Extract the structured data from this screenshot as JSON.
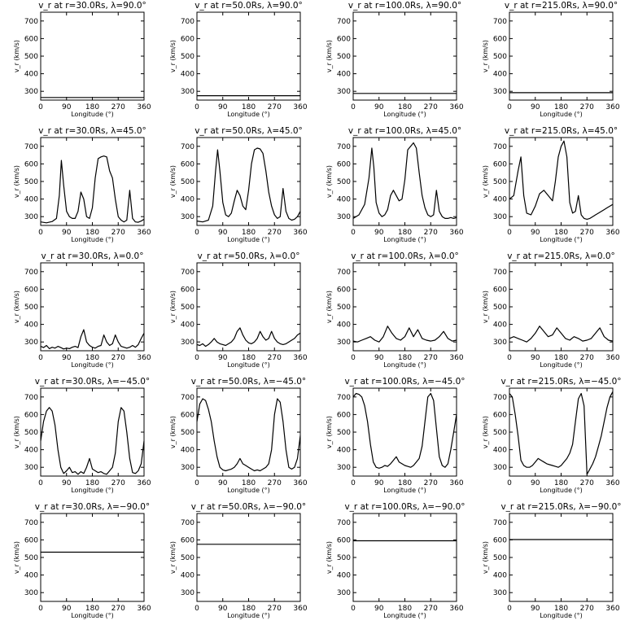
{
  "chart_data": {
    "type": "line",
    "rows": 5,
    "cols": 4,
    "xlabel": "Longitude (°)",
    "ylabel": "v_r (km/s)",
    "xlim": [
      0,
      360
    ],
    "ylim": [
      250,
      750
    ],
    "xticks": [
      0,
      90,
      180,
      270,
      360
    ],
    "yticks": [
      300,
      400,
      500,
      600,
      700
    ],
    "panels": [
      {
        "title": "v_r at r=30.0Rs, λ=90.0°",
        "x": [
          0,
          360
        ],
        "y": [
          265,
          265
        ]
      },
      {
        "title": "v_r at r=50.0Rs, λ=90.0°",
        "x": [
          0,
          360
        ],
        "y": [
          275,
          275
        ]
      },
      {
        "title": "v_r at r=100.0Rs, λ=90.0°",
        "x": [
          0,
          360
        ],
        "y": [
          288,
          288
        ]
      },
      {
        "title": "v_r at r=215.0Rs, λ=90.0°",
        "x": [
          0,
          360
        ],
        "y": [
          292,
          292
        ]
      },
      {
        "title": "v_r at r=30.0Rs, λ=45.0°",
        "x": [
          0,
          20,
          40,
          55,
          65,
          72,
          80,
          90,
          100,
          110,
          120,
          130,
          140,
          150,
          160,
          170,
          180,
          190,
          200,
          210,
          220,
          230,
          240,
          250,
          260,
          270,
          280,
          290,
          300,
          310,
          320,
          330,
          340,
          350,
          360
        ],
        "y": [
          270,
          265,
          272,
          290,
          420,
          620,
          480,
          330,
          300,
          290,
          290,
          330,
          440,
          400,
          300,
          290,
          350,
          520,
          630,
          640,
          645,
          640,
          560,
          520,
          400,
          300,
          280,
          270,
          280,
          450,
          290,
          270,
          268,
          275,
          285
        ]
      },
      {
        "title": "v_r at r=50.0Rs, λ=45.0°",
        "x": [
          0,
          20,
          40,
          55,
          65,
          72,
          80,
          90,
          100,
          110,
          120,
          130,
          140,
          150,
          160,
          170,
          180,
          190,
          200,
          210,
          220,
          230,
          240,
          250,
          260,
          270,
          280,
          290,
          300,
          310,
          320,
          330,
          340,
          350,
          360
        ],
        "y": [
          275,
          270,
          280,
          360,
          560,
          680,
          560,
          380,
          310,
          300,
          320,
          390,
          450,
          420,
          360,
          340,
          450,
          600,
          680,
          690,
          685,
          660,
          560,
          440,
          360,
          310,
          290,
          300,
          460,
          330,
          290,
          280,
          285,
          300,
          330
        ]
      },
      {
        "title": "v_r at r=100.0Rs, λ=45.0°",
        "x": [
          0,
          20,
          40,
          55,
          65,
          72,
          80,
          90,
          100,
          110,
          120,
          130,
          140,
          150,
          160,
          170,
          180,
          190,
          200,
          210,
          220,
          230,
          240,
          250,
          260,
          270,
          280,
          290,
          300,
          310,
          320,
          330,
          340,
          350,
          360
        ],
        "y": [
          290,
          310,
          370,
          520,
          690,
          580,
          380,
          320,
          300,
          310,
          340,
          420,
          450,
          420,
          390,
          400,
          510,
          680,
          700,
          720,
          690,
          550,
          420,
          350,
          310,
          300,
          310,
          450,
          330,
          300,
          290,
          290,
          295,
          290,
          295
        ]
      },
      {
        "title": "v_r at r=215.0Rs, λ=45.0°",
        "x": [
          0,
          15,
          30,
          40,
          50,
          60,
          75,
          90,
          105,
          120,
          135,
          150,
          160,
          170,
          180,
          190,
          200,
          210,
          220,
          230,
          240,
          250,
          260,
          270,
          280,
          290,
          300,
          310,
          320,
          330,
          340,
          350,
          360
        ],
        "y": [
          400,
          420,
          560,
          640,
          420,
          320,
          310,
          360,
          430,
          450,
          420,
          390,
          500,
          640,
          700,
          730,
          640,
          380,
          320,
          330,
          420,
          310,
          290,
          285,
          290,
          300,
          310,
          320,
          330,
          340,
          350,
          360,
          370
        ]
      },
      {
        "title": "v_r at r=30.0Rs, λ=0.0°",
        "x": [
          0,
          10,
          20,
          30,
          40,
          50,
          60,
          70,
          80,
          90,
          100,
          110,
          120,
          130,
          140,
          150,
          160,
          170,
          180,
          190,
          200,
          210,
          220,
          230,
          240,
          250,
          260,
          270,
          280,
          290,
          300,
          310,
          320,
          330,
          340,
          350,
          360
        ],
        "y": [
          275,
          268,
          280,
          262,
          270,
          265,
          275,
          268,
          260,
          265,
          262,
          270,
          275,
          268,
          330,
          370,
          300,
          280,
          270,
          265,
          275,
          280,
          340,
          300,
          280,
          290,
          340,
          300,
          275,
          270,
          265,
          270,
          280,
          270,
          285,
          320,
          350
        ]
      },
      {
        "title": "v_r at r=50.0Rs, λ=0.0°",
        "x": [
          0,
          10,
          20,
          30,
          40,
          50,
          60,
          70,
          80,
          90,
          100,
          110,
          120,
          130,
          140,
          150,
          160,
          170,
          180,
          190,
          200,
          210,
          220,
          230,
          240,
          250,
          260,
          270,
          280,
          290,
          300,
          310,
          320,
          330,
          340,
          350,
          360
        ],
        "y": [
          285,
          280,
          290,
          275,
          285,
          300,
          320,
          300,
          290,
          285,
          280,
          290,
          300,
          320,
          360,
          380,
          340,
          310,
          295,
          290,
          300,
          320,
          360,
          330,
          310,
          320,
          360,
          320,
          300,
          290,
          285,
          290,
          300,
          310,
          320,
          340,
          350
        ]
      },
      {
        "title": "v_r at r=100.0Rs, λ=0.0°",
        "x": [
          0,
          15,
          30,
          45,
          60,
          75,
          90,
          105,
          120,
          135,
          150,
          165,
          180,
          195,
          210,
          225,
          240,
          255,
          270,
          285,
          300,
          315,
          330,
          345,
          360
        ],
        "y": [
          305,
          300,
          310,
          320,
          330,
          310,
          300,
          330,
          390,
          350,
          320,
          310,
          330,
          380,
          330,
          370,
          320,
          310,
          305,
          310,
          330,
          360,
          320,
          305,
          310
        ]
      },
      {
        "title": "v_r at r=215.0Rs, λ=0.0°",
        "x": [
          0,
          15,
          30,
          45,
          60,
          75,
          90,
          105,
          120,
          135,
          150,
          165,
          180,
          195,
          210,
          225,
          240,
          255,
          270,
          285,
          300,
          315,
          330,
          345,
          360
        ],
        "y": [
          320,
          330,
          320,
          310,
          300,
          320,
          350,
          390,
          360,
          330,
          340,
          380,
          350,
          320,
          310,
          330,
          320,
          305,
          310,
          320,
          350,
          380,
          330,
          310,
          305
        ]
      },
      {
        "title": "v_r at r=30.0Rs, λ=−45.0°",
        "x": [
          0,
          10,
          20,
          30,
          40,
          50,
          60,
          70,
          80,
          90,
          100,
          110,
          120,
          130,
          140,
          150,
          160,
          170,
          180,
          190,
          200,
          210,
          220,
          230,
          240,
          250,
          260,
          270,
          280,
          290,
          300,
          310,
          320,
          330,
          340,
          350,
          360
        ],
        "y": [
          450,
          560,
          620,
          640,
          620,
          540,
          400,
          300,
          265,
          280,
          300,
          270,
          275,
          260,
          275,
          265,
          300,
          350,
          290,
          280,
          270,
          275,
          265,
          260,
          280,
          300,
          380,
          560,
          640,
          620,
          500,
          350,
          270,
          265,
          280,
          320,
          450
        ]
      },
      {
        "title": "v_r at r=50.0Rs, λ=−45.0°",
        "x": [
          0,
          10,
          20,
          30,
          40,
          50,
          60,
          70,
          80,
          90,
          100,
          110,
          120,
          130,
          140,
          150,
          160,
          170,
          180,
          190,
          200,
          210,
          220,
          230,
          240,
          250,
          260,
          270,
          280,
          290,
          300,
          310,
          320,
          330,
          340,
          350,
          360
        ],
        "y": [
          560,
          660,
          690,
          680,
          630,
          560,
          450,
          360,
          300,
          285,
          280,
          285,
          290,
          300,
          320,
          350,
          320,
          310,
          300,
          290,
          280,
          285,
          280,
          290,
          300,
          320,
          400,
          600,
          690,
          670,
          560,
          400,
          300,
          290,
          300,
          350,
          480
        ]
      },
      {
        "title": "v_r at r=100.0Rs, λ=−45.0°",
        "x": [
          0,
          10,
          20,
          30,
          40,
          50,
          60,
          70,
          80,
          90,
          100,
          110,
          120,
          130,
          140,
          150,
          160,
          170,
          180,
          190,
          200,
          210,
          220,
          230,
          240,
          250,
          260,
          270,
          280,
          290,
          300,
          310,
          320,
          330,
          340,
          350,
          360
        ],
        "y": [
          700,
          720,
          715,
          700,
          650,
          560,
          430,
          330,
          300,
          295,
          300,
          310,
          305,
          320,
          340,
          360,
          330,
          320,
          310,
          305,
          300,
          310,
          330,
          350,
          420,
          560,
          700,
          720,
          680,
          520,
          360,
          310,
          300,
          320,
          400,
          500,
          600
        ]
      },
      {
        "title": "v_r at r=215.0Rs, λ=−45.0°",
        "x": [
          0,
          10,
          20,
          30,
          40,
          50,
          60,
          70,
          80,
          90,
          100,
          110,
          120,
          130,
          140,
          150,
          160,
          170,
          180,
          190,
          200,
          210,
          220,
          230,
          240,
          250,
          260,
          270,
          280,
          290,
          300,
          310,
          320,
          330,
          340,
          350,
          360
        ],
        "y": [
          720,
          700,
          600,
          480,
          340,
          310,
          300,
          300,
          310,
          330,
          350,
          340,
          330,
          320,
          315,
          310,
          305,
          300,
          310,
          330,
          350,
          380,
          430,
          560,
          690,
          720,
          650,
          260,
          290,
          320,
          360,
          420,
          480,
          560,
          640,
          700,
          730
        ]
      },
      {
        "title": "v_r at r=30.0Rs, λ=−90.0°",
        "x": [
          0,
          360
        ],
        "y": [
          530,
          530
        ]
      },
      {
        "title": "v_r at r=50.0Rs, λ=−90.0°",
        "x": [
          0,
          360
        ],
        "y": [
          575,
          575
        ]
      },
      {
        "title": "v_r at r=100.0Rs, λ=−90.0°",
        "x": [
          0,
          360
        ],
        "y": [
          595,
          595
        ]
      },
      {
        "title": "v_r at r=215.0Rs, λ=−90.0°",
        "x": [
          0,
          360
        ],
        "y": [
          602,
          602
        ]
      }
    ]
  }
}
